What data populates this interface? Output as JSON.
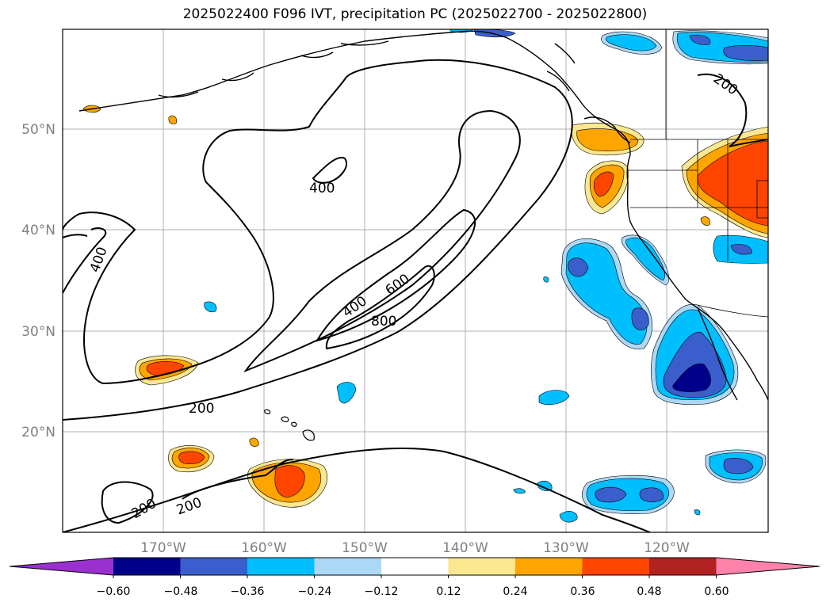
{
  "title": "2025022400 F096 IVT, precipitation PC (2025022700 - 2025022800)",
  "map": {
    "lat_labels": [
      "50°N",
      "40°N",
      "30°N",
      "20°N"
    ],
    "lon_labels": [
      "170°W",
      "160°W",
      "150°W",
      "140°W",
      "130°W",
      "120°W"
    ],
    "contour_labels": [
      "200",
      "400",
      "400",
      "400",
      "600",
      "800",
      "200",
      "200",
      "200"
    ]
  },
  "colorbar": {
    "tick_labels": [
      "−0.60",
      "−0.48",
      "−0.36",
      "−0.24",
      "−0.12",
      "0.12",
      "0.24",
      "0.36",
      "0.48",
      "0.60"
    ],
    "colors": [
      "#9b30d0",
      "#00008b",
      "#3a5fcd",
      "#00bfff",
      "#add8f5",
      "#ffffff",
      "#fae78f",
      "#ffa500",
      "#ff4500",
      "#b22222",
      "#ff82ab"
    ]
  }
}
